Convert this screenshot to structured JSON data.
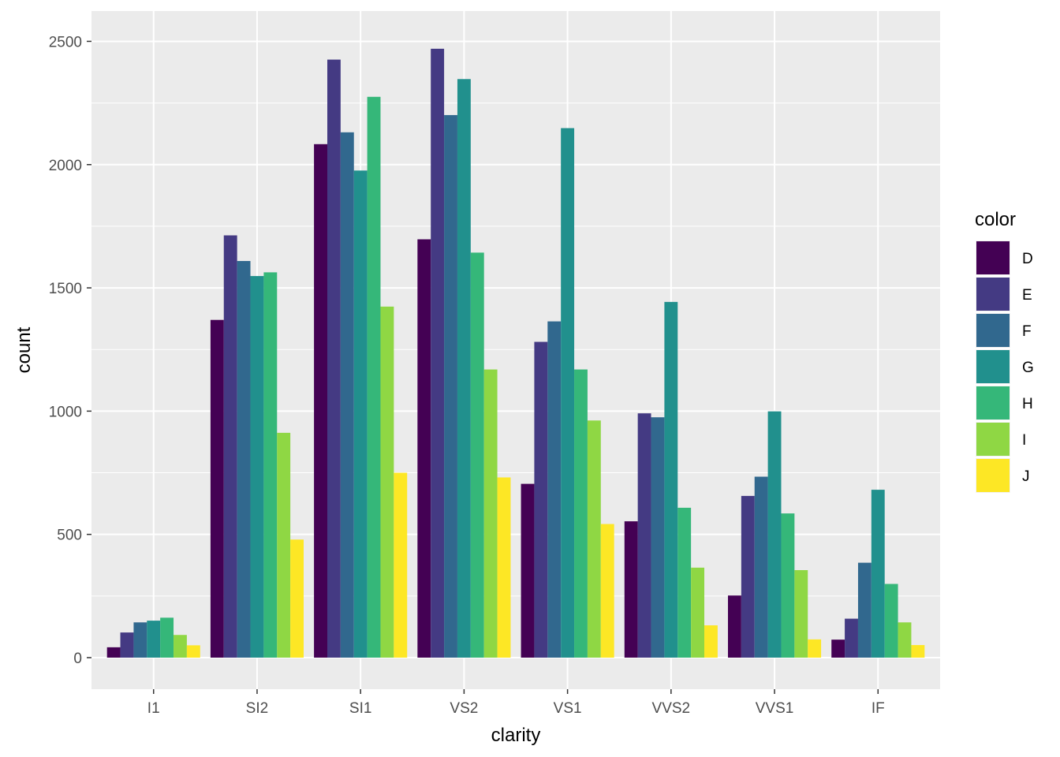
{
  "chart_data": {
    "type": "bar",
    "title": "",
    "xlabel": "clarity",
    "ylabel": "count",
    "ylim": [
      -128,
      2623
    ],
    "y_ticks": [
      0,
      500,
      1000,
      1500,
      2000,
      2500
    ],
    "y_tick_labels": [
      "0",
      "500",
      "1000",
      "1500",
      "2000",
      "2500"
    ],
    "categories": [
      "I1",
      "SI2",
      "SI1",
      "VS2",
      "VS1",
      "VVS2",
      "VVS1",
      "IF"
    ],
    "legend_title": "color",
    "legend_position": "right",
    "grid": true,
    "background": "#ebebeb",
    "series": [
      {
        "name": "D",
        "color": "#440154",
        "values": [
          42,
          1370,
          2083,
          1697,
          705,
          553,
          252,
          73
        ]
      },
      {
        "name": "E",
        "color": "#443a83",
        "values": [
          102,
          1713,
          2426,
          2470,
          1281,
          991,
          656,
          158
        ]
      },
      {
        "name": "F",
        "color": "#31688e",
        "values": [
          143,
          1609,
          2131,
          2201,
          1364,
          975,
          734,
          385
        ]
      },
      {
        "name": "G",
        "color": "#21908d",
        "values": [
          150,
          1548,
          1976,
          2347,
          2148,
          1443,
          999,
          681
        ]
      },
      {
        "name": "H",
        "color": "#35b779",
        "values": [
          162,
          1563,
          2275,
          1643,
          1169,
          608,
          585,
          299
        ]
      },
      {
        "name": "I",
        "color": "#8fd744",
        "values": [
          92,
          912,
          1424,
          1169,
          962,
          365,
          355,
          143
        ]
      },
      {
        "name": "J",
        "color": "#fde725",
        "values": [
          50,
          479,
          750,
          731,
          542,
          131,
          74,
          51
        ]
      }
    ]
  }
}
